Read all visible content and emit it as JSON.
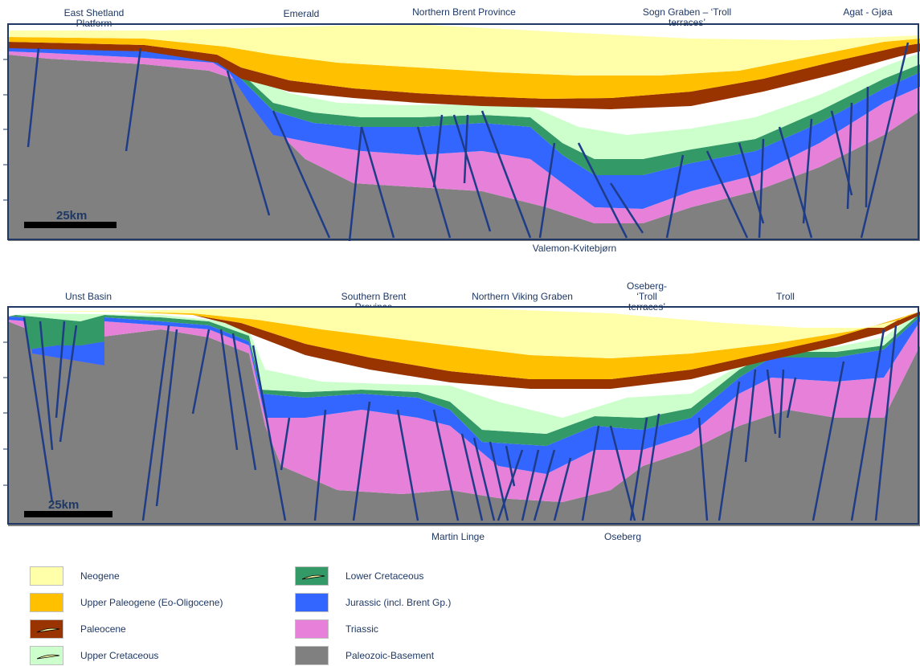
{
  "section_a": {
    "labels": {
      "east_shetland": "East Shetland\nPlatform",
      "emerald": "Emerald",
      "northern_brent": "Northern Brent Province",
      "sogn_graben": "Sogn Graben – ‘Troll\nterraces’",
      "agat_gjoa": "Agat - Gjøa",
      "valemon": "Valemon-Kvitebjørn"
    },
    "scale_label": "25km"
  },
  "section_b": {
    "labels": {
      "unst": "Unst Basin",
      "southern_brent": "Southern Brent\nProvince",
      "northern_viking": "Northern Viking Graben",
      "oseberg_troll": "Oseberg-\n‘Troll\nterraces’",
      "troll": "Troll",
      "martin_linge": "Martin Linge",
      "oseberg": "Oseberg"
    },
    "scale_label": "25km"
  },
  "legend": {
    "items": [
      {
        "label": "Neogene",
        "color": "#ffffaa",
        "marker": false
      },
      {
        "label": "Upper Paleogene (Eo-Oligocene)",
        "color": "#ffc000",
        "marker": false
      },
      {
        "label": "Paleocene",
        "color": "#993300",
        "marker": true
      },
      {
        "label": "Upper Cretaceous",
        "color": "#ccffcc",
        "marker": true
      },
      {
        "label": "Lower Cretaceous",
        "color": "#339966",
        "marker": true
      },
      {
        "label": "Jurassic (incl. Brent Gp.)",
        "color": "#3366ff",
        "marker": false
      },
      {
        "label": "Triassic",
        "color": "#e680d9",
        "marker": false
      },
      {
        "label": "Paleozoic-Basement",
        "color": "#808080",
        "marker": false
      }
    ]
  },
  "colors": {
    "frame": "#1f3864",
    "fault": "#1f3c88",
    "neogene": "#ffffaa",
    "upper_paleogene": "#ffc000",
    "paleocene": "#993300",
    "upper_cretaceous": "#ccffcc",
    "lower_cretaceous": "#339966",
    "jurassic": "#3366ff",
    "triassic": "#e680d9",
    "basement": "#808080"
  }
}
